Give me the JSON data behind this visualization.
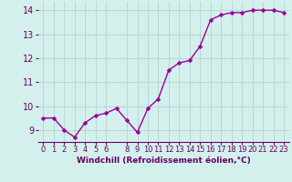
{
  "x": [
    0,
    1,
    2,
    3,
    4,
    5,
    6,
    7,
    8,
    9,
    10,
    11,
    12,
    13,
    14,
    15,
    16,
    17,
    18,
    19,
    20,
    21,
    22,
    23
  ],
  "y": [
    9.5,
    9.5,
    9.0,
    8.7,
    9.3,
    9.6,
    9.7,
    9.9,
    9.4,
    8.9,
    9.9,
    10.3,
    11.5,
    11.8,
    11.9,
    12.5,
    13.6,
    13.8,
    13.9,
    13.9,
    14.0,
    14.0,
    14.0,
    13.9
  ],
  "line_color": "#990099",
  "marker": "D",
  "marker_size": 2.5,
  "line_width": 1.0,
  "background_color": "#d4f0ec",
  "grid_color": "#b8d8d4",
  "xlabel": "Windchill (Refroidissement éolien,°C)",
  "xlabel_color": "#660066",
  "xlabel_fontsize": 6.5,
  "tick_color": "#660066",
  "tick_fontsize": 6,
  "ylim": [
    8.5,
    14.35
  ],
  "xlim": [
    -0.5,
    23.5
  ],
  "yticks": [
    9,
    10,
    11,
    12,
    13,
    14
  ],
  "xticks": [
    0,
    1,
    2,
    3,
    4,
    5,
    6,
    8,
    9,
    10,
    11,
    12,
    13,
    14,
    15,
    16,
    17,
    18,
    19,
    20,
    21,
    22,
    23
  ]
}
